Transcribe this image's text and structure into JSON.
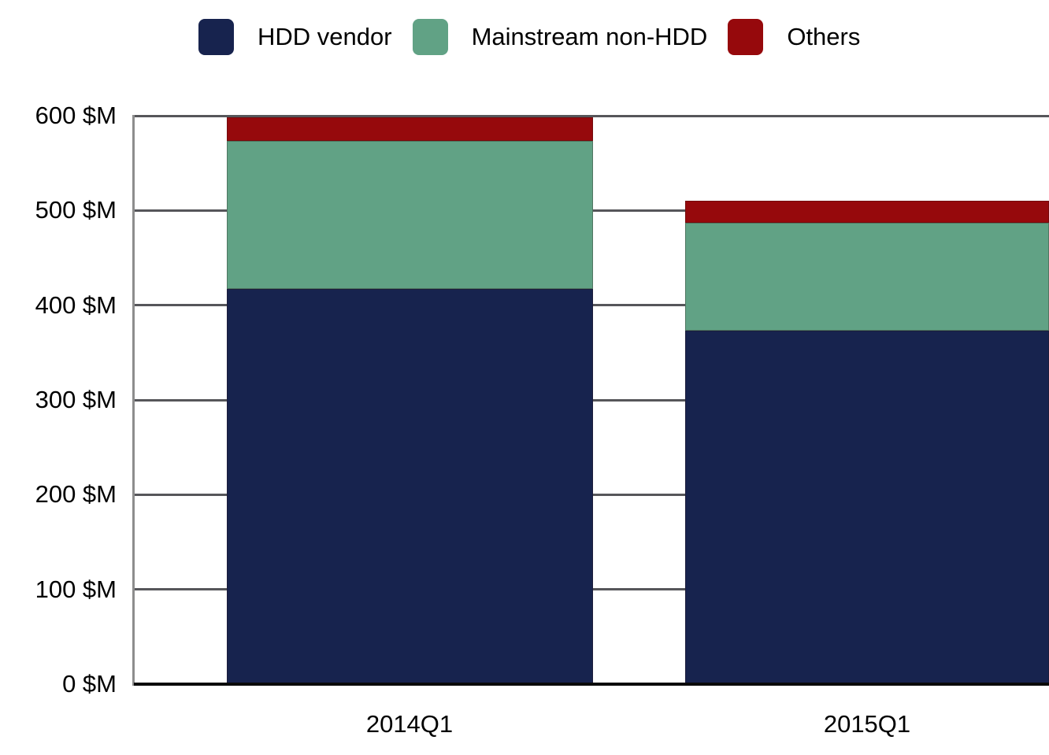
{
  "chart_data": {
    "type": "bar",
    "stacked": true,
    "title": "",
    "xlabel": "",
    "ylabel": "",
    "categories": [
      "2014Q1",
      "2015Q1"
    ],
    "series": [
      {
        "name": "HDD vendor",
        "color": "#17234e",
        "values": [
          417,
          373
        ]
      },
      {
        "name": "Mainstream non-HDD",
        "color": "#61a285",
        "values": [
          156,
          114
        ]
      },
      {
        "name": "Others",
        "color": "#96090c",
        "values": [
          25,
          23
        ]
      }
    ],
    "totals": [
      598,
      510
    ],
    "ylim": [
      0,
      600
    ],
    "yticks": [
      {
        "value": 0,
        "label": "0 $M"
      },
      {
        "value": 100,
        "label": "100 $M"
      },
      {
        "value": 200,
        "label": "200 $M"
      },
      {
        "value": 300,
        "label": "300 $M"
      },
      {
        "value": 400,
        "label": "400 $M"
      },
      {
        "value": 500,
        "label": "500 $M"
      },
      {
        "value": 600,
        "label": "600 $M"
      }
    ],
    "grid": true,
    "legend_position": "top",
    "colors": {
      "gridline": "#56565a",
      "axis_line": "#8d8d8d",
      "baseline": "#0a0a0a",
      "text": "#000000",
      "background": "#ffffff"
    }
  }
}
